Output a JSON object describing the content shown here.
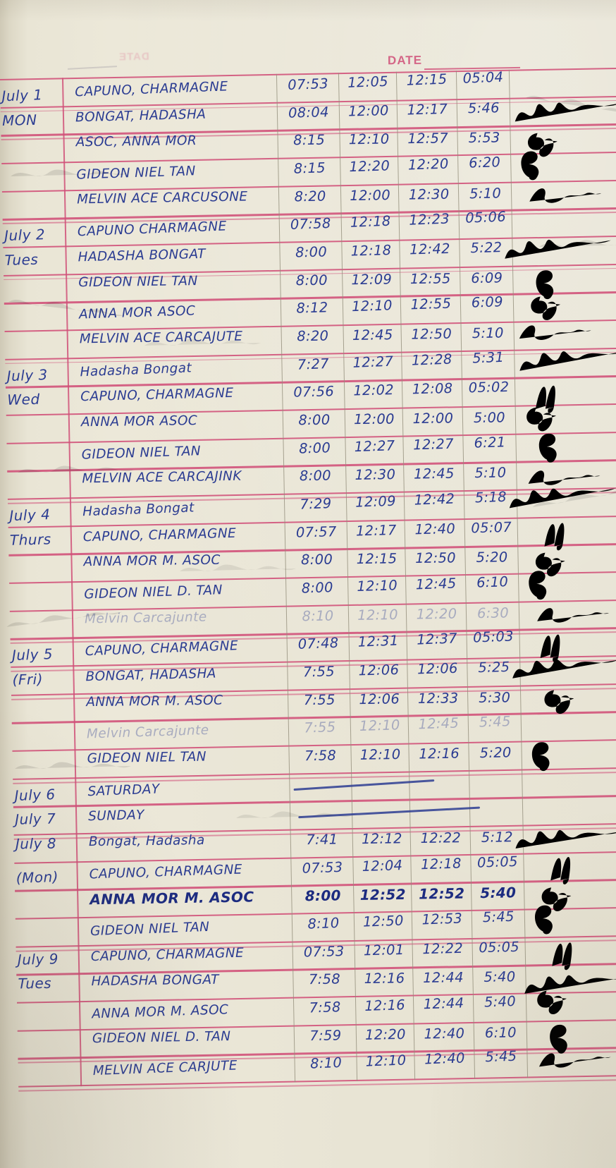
{
  "document_type": "handwritten attendance time log page",
  "colors": {
    "paper": "#e8e4d4",
    "rule_pink": "#d04f78",
    "pencil": "#948e7c",
    "ink_blue": "#2b3c92"
  },
  "header": {
    "date_label": "DATE",
    "date_blank": "",
    "bleed_label": "DATE"
  },
  "columns": [
    "day",
    "name",
    "time-in",
    "noon-out",
    "noon-in",
    "time-out",
    "signature"
  ],
  "rows": [
    {
      "day": "July 1",
      "name": "CAPUNO, CHARMAGNE",
      "times": [
        "07:53",
        "12:05",
        "12:15",
        "05:04"
      ],
      "sig": ""
    },
    {
      "day": "MON",
      "name": "BONGAT, HADASHA",
      "times": [
        "08:04",
        "12:00",
        "12:17",
        "5:46"
      ],
      "sig": "hadasha"
    },
    {
      "day": "",
      "name": "ASOC, ANNA MOR",
      "times": [
        "8:15",
        "12:10",
        "12:57",
        "5:53"
      ],
      "sig": "anna"
    },
    {
      "day": "",
      "name": "GIDEON NIEL TAN",
      "times": [
        "8:15",
        "12:20",
        "12:20",
        "6:20"
      ],
      "sig": "gideon"
    },
    {
      "day": "",
      "name": "MELVIN ACE CARCUSONE",
      "times": [
        "8:20",
        "12:00",
        "12:30",
        "5:10"
      ],
      "sig": "melvin"
    },
    {
      "day": "July 2",
      "name": "CAPUNO CHARMAGNE",
      "times": [
        "07:58",
        "12:18",
        "12:23",
        "05:06"
      ],
      "sig": ""
    },
    {
      "day": "Tues",
      "name": "HADASHA BONGAT",
      "times": [
        "8:00",
        "12:18",
        "12:42",
        "5:22"
      ],
      "sig": "hadasha"
    },
    {
      "day": "",
      "name": "GIDEON NIEL TAN",
      "times": [
        "8:00",
        "12:09",
        "12:55",
        "6:09"
      ],
      "sig": "gideon"
    },
    {
      "day": "",
      "name": "ANNA MOR ASOC",
      "times": [
        "8:12",
        "12:10",
        "12:55",
        "6:09"
      ],
      "sig": "anna"
    },
    {
      "day": "",
      "name": "MELVIN ACE CARCAJUTE",
      "times": [
        "8:20",
        "12:45",
        "12:50",
        "5:10"
      ],
      "sig": "melvin"
    },
    {
      "day": "July 3",
      "name": "Hadasha Bongat",
      "times": [
        "7:27",
        "12:27",
        "12:28",
        "5:31"
      ],
      "sig": "hadasha"
    },
    {
      "day": "Wed",
      "name": "CAPUNO, CHARMAGNE",
      "times": [
        "07:56",
        "12:02",
        "12:08",
        "05:02"
      ],
      "sig": "charmagne"
    },
    {
      "day": "",
      "name": "ANNA MOR ASOC",
      "times": [
        "8:00",
        "12:00",
        "12:00",
        "5:00"
      ],
      "sig": "anna"
    },
    {
      "day": "",
      "name": "GIDEON NIEL TAN",
      "times": [
        "8:00",
        "12:27",
        "12:27",
        "6:21"
      ],
      "sig": "gideon"
    },
    {
      "day": "",
      "name": "MELVIN ACE CARCAJINK",
      "times": [
        "8:00",
        "12:30",
        "12:45",
        "5:10"
      ],
      "sig": "melvin"
    },
    {
      "day": "July 4",
      "name": "Hadasha Bongat",
      "times": [
        "7:29",
        "12:09",
        "12:42",
        "5:18"
      ],
      "sig": "hadasha"
    },
    {
      "day": "Thurs",
      "name": "CAPUNO, CHARMAGNE",
      "times": [
        "07:57",
        "12:17",
        "12:40",
        "05:07"
      ],
      "sig": "charmagne"
    },
    {
      "day": "",
      "name": "ANNA MOR M. ASOC",
      "times": [
        "8:00",
        "12:15",
        "12:50",
        "5:20"
      ],
      "sig": "anna"
    },
    {
      "day": "",
      "name": "GIDEON NIEL D. TAN",
      "times": [
        "8:00",
        "12:10",
        "12:45",
        "6:10"
      ],
      "sig": "gideon"
    },
    {
      "day": "",
      "name": "Melvin Carcajunte",
      "times": [
        "8:10",
        "12:10",
        "12:20",
        "6:30"
      ],
      "sig": "melvin",
      "faint": true
    },
    {
      "day": "July 5",
      "name": "CAPUNO, CHARMAGNE",
      "times": [
        "07:48",
        "12:31",
        "12:37",
        "05:03"
      ],
      "sig": "charmagne"
    },
    {
      "day": "(Fri)",
      "name": "BONGAT, HADASHA",
      "times": [
        "7:55",
        "12:06",
        "12:06",
        "5:25"
      ],
      "sig": "hadasha"
    },
    {
      "day": "",
      "name": "ANNA MOR M. ASOC",
      "times": [
        "7:55",
        "12:06",
        "12:33",
        "5:30"
      ],
      "sig": "anna"
    },
    {
      "day": "",
      "name": "Melvin Carcajunte",
      "times": [
        "7:55",
        "12:10",
        "12:45",
        "5:45"
      ],
      "sig": "",
      "faint": true
    },
    {
      "day": "",
      "name": "GIDEON NIEL TAN",
      "times": [
        "7:58",
        "12:10",
        "12:16",
        "5:20"
      ],
      "sig": "gideon"
    },
    {
      "day": "July 6",
      "name": "SATURDAY",
      "times": [
        "",
        "",
        "",
        ""
      ],
      "sig": "",
      "dash": true
    },
    {
      "day": "July 7",
      "name": "SUNDAY",
      "times": [
        "",
        "",
        "",
        ""
      ],
      "sig": "",
      "dash": true
    },
    {
      "day": "July 8",
      "name": "Bongat, Hadasha",
      "times": [
        "7:41",
        "12:12",
        "12:22",
        "5:12"
      ],
      "sig": "hadasha"
    },
    {
      "day": "(Mon)",
      "name": "CAPUNO, CHARMAGNE",
      "times": [
        "07:53",
        "12:04",
        "12:18",
        "05:05"
      ],
      "sig": "charmagne"
    },
    {
      "day": "",
      "name": "ANNA MOR M. ASOC",
      "times": [
        "8:00",
        "12:52",
        "12:52",
        "5:40"
      ],
      "sig": "anna",
      "bold": true
    },
    {
      "day": "",
      "name": "GIDEON NIEL TAN",
      "times": [
        "8:10",
        "12:50",
        "12:53",
        "5:45"
      ],
      "sig": "gideon"
    },
    {
      "day": "July 9",
      "name": "CAPUNO, CHARMAGNE",
      "times": [
        "07:53",
        "12:01",
        "12:22",
        "05:05"
      ],
      "sig": "charmagne"
    },
    {
      "day": "Tues",
      "name": "HADASHA BONGAT",
      "times": [
        "7:58",
        "12:16",
        "12:44",
        "5:40"
      ],
      "sig": "hadasha"
    },
    {
      "day": "",
      "name": "ANNA MOR M. ASOC",
      "times": [
        "7:58",
        "12:16",
        "12:44",
        "5:40"
      ],
      "sig": "anna"
    },
    {
      "day": "",
      "name": "GIDEON NIEL D. TAN",
      "times": [
        "7:59",
        "12:20",
        "12:40",
        "6:10"
      ],
      "sig": "gideon"
    },
    {
      "day": "",
      "name": "MELVIN ACE CARJUTE",
      "times": [
        "8:10",
        "12:10",
        "12:40",
        "5:45"
      ],
      "sig": "melvin"
    }
  ]
}
